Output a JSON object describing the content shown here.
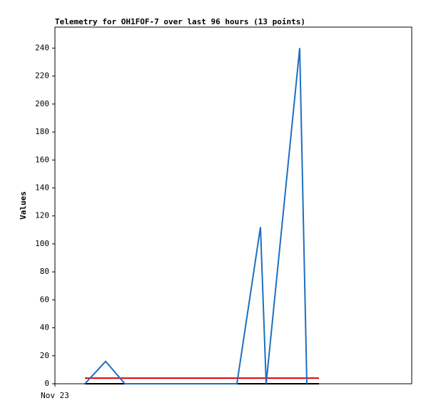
{
  "chart_data": {
    "type": "line",
    "title": "Telemetry for OH1FOF-7 over last 96 hours (13 points)",
    "y_label": "Values",
    "xlim": [
      0,
      100
    ],
    "xticks": [
      {
        "value": 0,
        "label": "Nov 23"
      }
    ],
    "ylim": [
      0,
      255
    ],
    "yticks": [
      0,
      20,
      40,
      60,
      80,
      100,
      120,
      140,
      160,
      180,
      200,
      220,
      240
    ],
    "series": [
      {
        "color": "#000000",
        "x": [
          8.4,
          74
        ],
        "values": [
          0,
          0
        ]
      },
      {
        "color": "#e00000",
        "x": [
          8.4,
          74
        ],
        "values": [
          4,
          4
        ]
      },
      {
        "color": "#1f6fbf",
        "x": [
          8.4,
          14.2,
          19.6,
          51,
          57.6,
          59.2,
          68.6,
          70.6
        ],
        "values": [
          0,
          16,
          0,
          0,
          112,
          0,
          240,
          0
        ]
      }
    ]
  }
}
